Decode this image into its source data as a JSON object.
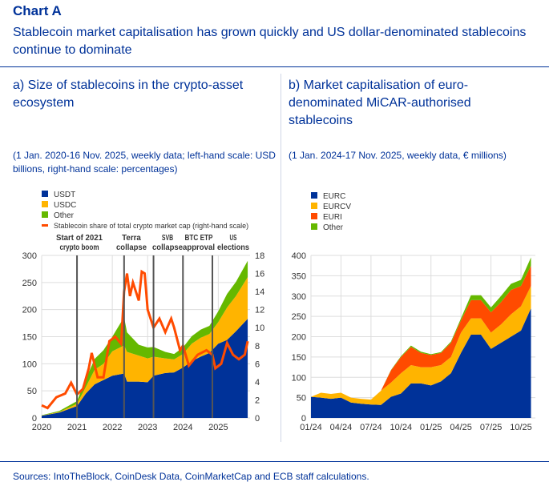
{
  "header": {
    "label": "Chart A",
    "title": "Stablecoin market capitalisation has grown quickly and US dollar-denominated stablecoins continue to dominate"
  },
  "panel_a": {
    "title": "a) Size of stablecoins in the crypto-asset ecosystem",
    "note": "(1 Jan. 2020-16 Nov. 2025, weekly data; left-hand scale: USD billions, right-hand scale: percentages)"
  },
  "panel_b": {
    "title": "b) Market capitalisation of euro-denominated MiCAR-authorised stablecoins",
    "note": "(1 Jan. 2024-17 Nov. 2025, weekly data, € millions)"
  },
  "source": "Sources: IntoTheBlock, CoinDesk Data, CoinMarketCap and ECB staff calculations.",
  "chart_data": [
    {
      "type": "area",
      "stacked": true,
      "ylim": [
        0,
        300
      ],
      "y2lim": [
        0,
        18
      ],
      "yticks": [
        0,
        50,
        100,
        150,
        200,
        250,
        300
      ],
      "y2ticks": [
        0,
        2,
        4,
        6,
        8,
        10,
        12,
        14,
        16,
        18
      ],
      "xticks": [
        "2020",
        "2021",
        "2022",
        "2023",
        "2024",
        "2025"
      ],
      "grid": true,
      "legend": "top-left",
      "x": [
        "2020-01",
        "2020-07",
        "2021-01",
        "2021-04",
        "2021-07",
        "2021-10",
        "2022-01",
        "2022-05",
        "2022-06",
        "2022-10",
        "2023-01",
        "2023-03",
        "2023-07",
        "2023-10",
        "2024-01",
        "2024-04",
        "2024-07",
        "2024-10",
        "2025-01",
        "2025-04",
        "2025-07",
        "2025-11"
      ],
      "series": [
        {
          "name": "USDT",
          "color": "#003299",
          "values": [
            4,
            10,
            22,
            45,
            62,
            70,
            78,
            82,
            67,
            67,
            66,
            78,
            83,
            84,
            93,
            105,
            113,
            120,
            137,
            144,
            160,
            183
          ]
        },
        {
          "name": "USDC",
          "color": "#ffb400",
          "values": [
            0.5,
            1,
            4,
            12,
            27,
            30,
            45,
            52,
            55,
            48,
            44,
            35,
            27,
            24,
            25,
            32,
            35,
            35,
            40,
            60,
            65,
            77
          ]
        },
        {
          "name": "Other",
          "color": "#65b800",
          "values": [
            0.5,
            2,
            5,
            15,
            20,
            25,
            27,
            52,
            36,
            20,
            20,
            18,
            12,
            10,
            12,
            14,
            15,
            15,
            20,
            25,
            26,
            30
          ]
        }
      ],
      "line": {
        "name": "Stablecoin share of total crypto market cap (right-hand scale)",
        "color": "#ff4b00",
        "x": [
          "2020-01",
          "2020-03",
          "2020-06",
          "2020-09",
          "2020-11",
          "2021-01",
          "2021-03",
          "2021-05",
          "2021-06",
          "2021-08",
          "2021-10",
          "2021-12",
          "2022-02",
          "2022-04",
          "2022-05",
          "2022-06",
          "2022-07",
          "2022-08",
          "2022-10",
          "2022-11",
          "2022-12",
          "2023-01",
          "2023-03",
          "2023-05",
          "2023-07",
          "2023-09",
          "2023-10",
          "2023-12",
          "2024-01",
          "2024-03",
          "2024-06",
          "2024-09",
          "2024-11",
          "2024-12",
          "2025-02",
          "2025-04",
          "2025-06",
          "2025-08",
          "2025-10",
          "2025-11"
        ],
        "values": [
          1.4,
          1.1,
          2.3,
          2.7,
          3.9,
          2.6,
          3.2,
          5.5,
          7.2,
          4.5,
          4.5,
          8.5,
          9,
          8.2,
          14,
          16,
          13.5,
          15,
          13,
          16.2,
          16,
          12,
          10,
          11,
          9.5,
          11,
          10,
          7.5,
          8,
          5.8,
          7,
          7.5,
          7,
          5.5,
          6,
          8.3,
          7,
          6.5,
          7,
          8.5
        ]
      },
      "events": [
        {
          "date": "2021-01",
          "label": "Start of 2021 crypto boom"
        },
        {
          "date": "2022-05",
          "label": "Terra collapse"
        },
        {
          "date": "2023-03",
          "label": "SVB collapse"
        },
        {
          "date": "2024-01",
          "label": "BTC ETP approval"
        },
        {
          "date": "2024-11",
          "label": "US elections"
        }
      ]
    },
    {
      "type": "area",
      "stacked": true,
      "ylim": [
        0,
        400
      ],
      "yticks": [
        0,
        50,
        100,
        150,
        200,
        250,
        300,
        350,
        400
      ],
      "xticks": [
        "01/24",
        "04/24",
        "07/24",
        "10/24",
        "01/25",
        "04/25",
        "07/25",
        "10/25"
      ],
      "grid": true,
      "legend": "top-left",
      "x": [
        "2024-01",
        "2024-02",
        "2024-03",
        "2024-04",
        "2024-05",
        "2024-06",
        "2024-07",
        "2024-08",
        "2024-09",
        "2024-10",
        "2024-11",
        "2024-12",
        "2025-01",
        "2025-02",
        "2025-03",
        "2025-04",
        "2025-05",
        "2025-06",
        "2025-07",
        "2025-08",
        "2025-09",
        "2025-10",
        "2025-11"
      ],
      "series": [
        {
          "name": "EURC",
          "color": "#003299",
          "values": [
            52,
            50,
            47,
            50,
            38,
            35,
            33,
            32,
            52,
            60,
            85,
            85,
            80,
            90,
            110,
            160,
            205,
            205,
            170,
            185,
            200,
            215,
            270
          ]
        },
        {
          "name": "EURCV",
          "color": "#ffb400",
          "values": [
            0,
            12,
            12,
            12,
            12,
            12,
            12,
            35,
            35,
            50,
            45,
            40,
            45,
            40,
            40,
            50,
            40,
            40,
            40,
            45,
            55,
            60,
            55
          ]
        },
        {
          "name": "EURI",
          "color": "#ff4b00",
          "values": [
            0,
            0,
            0,
            0,
            0,
            0,
            0,
            0,
            30,
            40,
            45,
            35,
            30,
            30,
            35,
            30,
            45,
            45,
            50,
            55,
            60,
            50,
            50
          ]
        },
        {
          "name": "Other",
          "color": "#65b800",
          "values": [
            0,
            0,
            0,
            0,
            0,
            0,
            0,
            0,
            1,
            2,
            3,
            3,
            2,
            2,
            3,
            5,
            12,
            12,
            12,
            15,
            15,
            15,
            20
          ]
        }
      ]
    }
  ]
}
